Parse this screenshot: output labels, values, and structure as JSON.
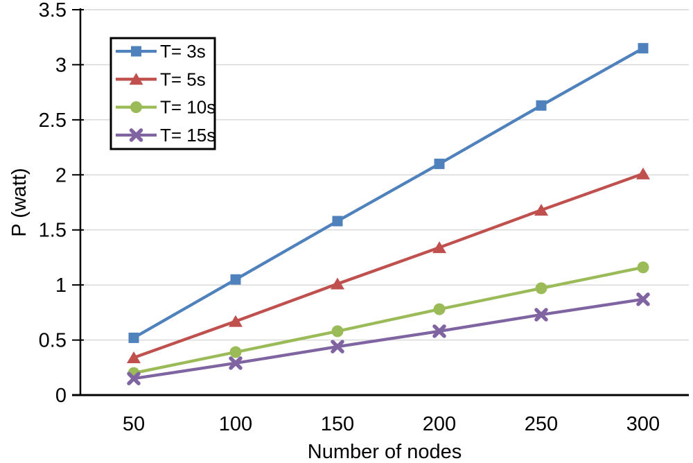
{
  "chart_data": {
    "type": "line",
    "title": "",
    "xlabel": "Number of nodes",
    "ylabel": "P (watt)",
    "x": [
      50,
      100,
      150,
      200,
      250,
      300
    ],
    "ylim": [
      0,
      3.5
    ],
    "ytick_step": 0.5,
    "ytick_labels": [
      "0",
      "0.5",
      "1",
      "1.5",
      "2",
      "2.5",
      "3",
      "3.5"
    ],
    "grid": true,
    "legend_position": "upper-left-inside",
    "series": [
      {
        "name": "T= 3s",
        "marker": "square",
        "color": "#4F81BD",
        "values": [
          0.52,
          1.05,
          1.58,
          2.1,
          2.63,
          3.15
        ]
      },
      {
        "name": "T= 5s",
        "marker": "triangle",
        "color": "#C0504D",
        "values": [
          0.34,
          0.67,
          1.01,
          1.34,
          1.68,
          2.01
        ]
      },
      {
        "name": "T= 10s",
        "marker": "circle",
        "color": "#9BBB59",
        "values": [
          0.2,
          0.39,
          0.58,
          0.78,
          0.97,
          1.16
        ]
      },
      {
        "name": "T= 15s",
        "marker": "x",
        "color": "#8064A2",
        "values": [
          0.15,
          0.29,
          0.44,
          0.58,
          0.73,
          0.87
        ]
      }
    ]
  },
  "colors": {
    "background": "#FFFFFF",
    "axis": "#000000",
    "gridline": "#D6D6D6",
    "text": "#000000",
    "legend_border": "#000000",
    "legend_fill": "#FFFFFF"
  }
}
